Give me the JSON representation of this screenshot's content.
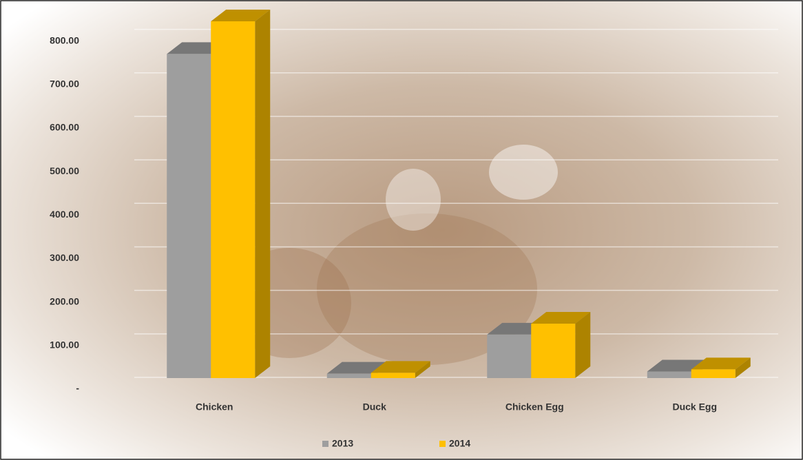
{
  "chart_data": {
    "type": "bar3d",
    "categories": [
      "Chicken",
      "Duck",
      "Chicken Egg",
      "Duck Egg"
    ],
    "series": [
      {
        "name": "2013",
        "color": "#9e9e9e",
        "values": [
          745,
          10,
          100,
          15
        ]
      },
      {
        "name": "2014",
        "color": "#ffc000",
        "values": [
          820,
          12,
          125,
          20
        ]
      }
    ],
    "ylim": [
      0,
      850
    ],
    "yticks": [
      {
        "value": 0,
        "label": "-"
      },
      {
        "value": 100,
        "label": "100.00"
      },
      {
        "value": 200,
        "label": "200.00"
      },
      {
        "value": 300,
        "label": "300.00"
      },
      {
        "value": 400,
        "label": "400.00"
      },
      {
        "value": 500,
        "label": "500.00"
      },
      {
        "value": 600,
        "label": "600.00"
      },
      {
        "value": 700,
        "label": "700.00"
      },
      {
        "value": 800,
        "label": "800.00"
      }
    ],
    "grid": true,
    "legend": "bottom"
  }
}
